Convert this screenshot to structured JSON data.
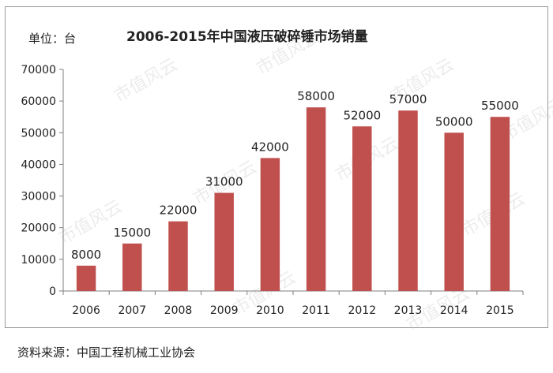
{
  "unit_label": "单位：台",
  "source": "资料来源：中国工程机械工业协会",
  "watermark": "市值风云",
  "colors": {
    "bar": "#c0504d",
    "axis": "#7f7f7f",
    "frame": "#9a9a9a"
  },
  "chart_data": {
    "type": "bar",
    "title": "2006-2015年中国液压破碎锤市场销量",
    "xlabel": "",
    "ylabel": "单位：台",
    "categories": [
      "2006",
      "2007",
      "2008",
      "2009",
      "2010",
      "2011",
      "2012",
      "2013",
      "2014",
      "2015"
    ],
    "values": [
      8000,
      15000,
      22000,
      31000,
      42000,
      58000,
      52000,
      57000,
      50000,
      55000
    ],
    "ylim": [
      0,
      70000
    ],
    "yticks": [
      0,
      10000,
      20000,
      30000,
      40000,
      50000,
      60000,
      70000
    ],
    "grid": false,
    "legend": "none"
  }
}
